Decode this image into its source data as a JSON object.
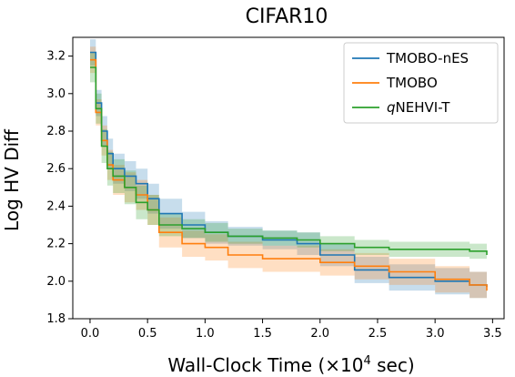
{
  "chart_data": {
    "type": "line",
    "title": "CIFAR10",
    "xlabel": "Wall-Clock Time (×10",
    "xlabel_sup": "4",
    "xlabel_tail": " sec)",
    "ylabel": "Log HV Diff",
    "xlim": [
      -0.15,
      3.6
    ],
    "ylim": [
      1.8,
      3.3
    ],
    "xticks": [
      0.0,
      0.5,
      1.0,
      1.5,
      2.0,
      2.5,
      3.0,
      3.5
    ],
    "xtick_labels": [
      "0.0",
      "0.5",
      "1.0",
      "1.5",
      "2.0",
      "2.5",
      "3.0",
      "3.5"
    ],
    "yticks": [
      1.8,
      2.0,
      2.2,
      2.4,
      2.6,
      2.8,
      3.0,
      3.2
    ],
    "ytick_labels": [
      "1.8",
      "2.0",
      "2.2",
      "2.4",
      "2.6",
      "2.8",
      "3.0",
      "3.2"
    ],
    "grid": false,
    "legend_position": "top-right",
    "series": [
      {
        "name": "TMOBO-nES",
        "name_italic_prefix": "",
        "color": "#1f77b4",
        "x": [
          0.0,
          0.05,
          0.1,
          0.15,
          0.2,
          0.3,
          0.4,
          0.5,
          0.6,
          0.8,
          1.0,
          1.2,
          1.5,
          1.8,
          2.0,
          2.3,
          2.6,
          3.0,
          3.3,
          3.45
        ],
        "y": [
          3.22,
          2.95,
          2.8,
          2.68,
          2.6,
          2.56,
          2.52,
          2.44,
          2.36,
          2.3,
          2.26,
          2.24,
          2.22,
          2.2,
          2.14,
          2.06,
          2.02,
          2.0,
          1.98,
          1.97
        ],
        "band": [
          0.07,
          0.07,
          0.08,
          0.08,
          0.08,
          0.08,
          0.08,
          0.08,
          0.08,
          0.07,
          0.06,
          0.05,
          0.05,
          0.06,
          0.06,
          0.07,
          0.07,
          0.07,
          0.07,
          0.07
        ]
      },
      {
        "name": "TMOBO",
        "name_italic_prefix": "",
        "color": "#ff7f0e",
        "x": [
          0.0,
          0.05,
          0.1,
          0.15,
          0.2,
          0.3,
          0.4,
          0.5,
          0.6,
          0.8,
          1.0,
          1.2,
          1.5,
          1.8,
          2.0,
          2.3,
          2.6,
          3.0,
          3.3,
          3.45
        ],
        "y": [
          3.18,
          2.9,
          2.75,
          2.62,
          2.54,
          2.5,
          2.46,
          2.38,
          2.26,
          2.2,
          2.18,
          2.14,
          2.12,
          2.12,
          2.1,
          2.08,
          2.05,
          2.01,
          1.98,
          1.95
        ],
        "band": [
          0.07,
          0.07,
          0.08,
          0.08,
          0.08,
          0.08,
          0.08,
          0.08,
          0.08,
          0.07,
          0.07,
          0.07,
          0.07,
          0.07,
          0.07,
          0.07,
          0.07,
          0.07,
          0.07,
          0.07
        ]
      },
      {
        "name": "NEHVI-T",
        "name_italic_prefix": "q",
        "color": "#2ca02c",
        "x": [
          0.0,
          0.05,
          0.1,
          0.15,
          0.2,
          0.3,
          0.4,
          0.5,
          0.6,
          0.8,
          1.0,
          1.2,
          1.5,
          1.8,
          2.0,
          2.3,
          2.6,
          3.0,
          3.3,
          3.45
        ],
        "y": [
          3.14,
          2.92,
          2.72,
          2.6,
          2.56,
          2.5,
          2.42,
          2.38,
          2.3,
          2.28,
          2.26,
          2.24,
          2.23,
          2.22,
          2.2,
          2.18,
          2.17,
          2.17,
          2.16,
          2.14
        ],
        "band": [
          0.08,
          0.08,
          0.09,
          0.09,
          0.09,
          0.09,
          0.09,
          0.08,
          0.06,
          0.05,
          0.05,
          0.04,
          0.04,
          0.04,
          0.04,
          0.04,
          0.04,
          0.04,
          0.04,
          0.04
        ]
      }
    ]
  }
}
